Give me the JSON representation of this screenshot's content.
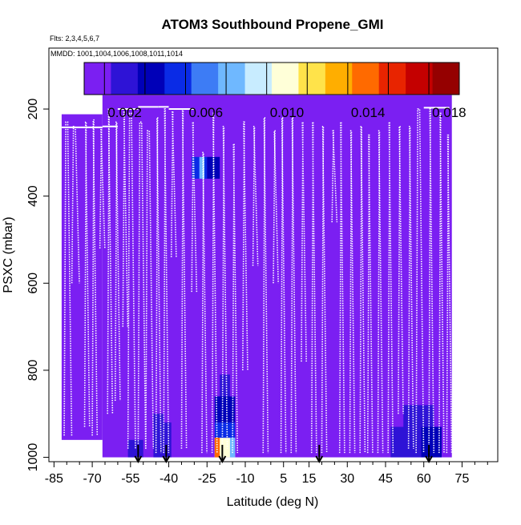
{
  "chart_data": {
    "type": "heatmap",
    "title": "ATOM3 Southbound Propene_GMI",
    "flights_label": "Flts: 2,3,4,5,6,7",
    "mmdd_label": "MMDD: 1001,1004,1006,1008,1011,1014",
    "xlabel": "Latitude (deg N)",
    "ylabel": "PSXC (mbar)",
    "xlim": [
      -87,
      89
    ],
    "ylim": [
      1010,
      60
    ],
    "x_ticks": [
      -85,
      -70,
      -55,
      -40,
      -25,
      -10,
      5,
      15,
      30,
      45,
      60,
      75
    ],
    "x_tick_labels": [
      "-85",
      "-70",
      "-55",
      "-40",
      "-25",
      "-10",
      "5",
      "15",
      "30",
      "45",
      "60",
      "75"
    ],
    "y_ticks": [
      200,
      400,
      600,
      800,
      1000
    ],
    "y_tick_labels": [
      "200",
      "400",
      "600",
      "800",
      "1000"
    ],
    "colorbar": {
      "min": 0.0,
      "max": 0.0185,
      "ticks": [
        0.002,
        0.006,
        0.01,
        0.014,
        0.018
      ],
      "tick_labels": [
        "0.002",
        "0.006",
        "0.010",
        "0.014",
        "0.018"
      ],
      "colors": [
        "#7b1ff2",
        "#2e13d6",
        "#0000b8",
        "#0a2be6",
        "#3d7cf5",
        "#6fb8ff",
        "#c8ecff",
        "#ffffd8",
        "#ffe34a",
        "#ffae00",
        "#ff6a00",
        "#e82400",
        "#c40000",
        "#950000"
      ]
    },
    "background_value": 0.0,
    "background_regions": [
      {
        "lat": [
          -82,
          -66
        ],
        "p": [
          212,
          960
        ]
      },
      {
        "lat": [
          -66,
          71
        ],
        "p": [
          168,
          1000
        ]
      }
    ],
    "enhanced_cells": [
      {
        "lat": [
          -22,
          -14
        ],
        "p": [
          955,
          1000
        ],
        "value": 0.0105
      },
      {
        "lat": [
          -22,
          -20
        ],
        "p": [
          955,
          1000
        ],
        "value": 0.014
      },
      {
        "lat": [
          -16,
          -14
        ],
        "p": [
          955,
          1000
        ],
        "value": 0.0075
      },
      {
        "lat": [
          -22,
          -14
        ],
        "p": [
          920,
          955
        ],
        "value": 0.004
      },
      {
        "lat": [
          -22,
          -14
        ],
        "p": [
          860,
          920
        ],
        "value": 0.003
      },
      {
        "lat": [
          -20,
          -16
        ],
        "p": [
          810,
          860
        ],
        "value": 0.0015
      },
      {
        "lat": [
          -31,
          -25
        ],
        "p": [
          310,
          360
        ],
        "value": 0.004
      },
      {
        "lat": [
          -25,
          -20
        ],
        "p": [
          310,
          360
        ],
        "value": 0.003
      },
      {
        "lat": [
          -28,
          -26
        ],
        "p": [
          310,
          360
        ],
        "value": 0.0075
      },
      {
        "lat": [
          -46,
          -42
        ],
        "p": [
          900,
          1000
        ],
        "value": 0.0025
      },
      {
        "lat": [
          -42,
          -39
        ],
        "p": [
          920,
          1000
        ],
        "value": 0.0015
      },
      {
        "lat": [
          -56,
          -50
        ],
        "p": [
          960,
          1000
        ],
        "value": 0.0015
      },
      {
        "lat": [
          47,
          59
        ],
        "p": [
          930,
          1000
        ],
        "value": 0.002
      },
      {
        "lat": [
          59,
          67
        ],
        "p": [
          930,
          1000
        ],
        "value": 0.003
      },
      {
        "lat": [
          52,
          64
        ],
        "p": [
          880,
          930
        ],
        "value": 0.0015
      }
    ],
    "profile_gaps": [
      {
        "lat": [
          -66,
          -64
        ],
        "p": [
          230,
          580
        ]
      },
      {
        "lat": [
          -57,
          -55
        ],
        "p": [
          210,
          620
        ]
      },
      {
        "lat": [
          -38,
          -36
        ],
        "p": [
          200,
          520
        ]
      },
      {
        "lat": [
          -8,
          -6
        ],
        "p": [
          220,
          540
        ]
      },
      {
        "lat": [
          25,
          27
        ],
        "p": [
          240,
          450
        ]
      },
      {
        "lat": [
          40,
          42
        ],
        "p": [
          230,
          500
        ]
      }
    ],
    "white_border_segments": [
      {
        "lat": [
          -82,
          -66
        ],
        "p": [
          960,
          1000
        ]
      },
      {
        "lat": [
          -87,
          -82
        ],
        "p": [
          60,
          1010
        ]
      },
      {
        "lat": [
          -82,
          -66
        ],
        "p": [
          60,
          212
        ]
      },
      {
        "lat": [
          71,
          89
        ],
        "p": [
          60,
          1010
        ]
      },
      {
        "lat": [
          -66,
          71
        ],
        "p": [
          60,
          168
        ]
      }
    ],
    "arrows_lat": [
      -52,
      -41,
      -19,
      19,
      62
    ]
  }
}
